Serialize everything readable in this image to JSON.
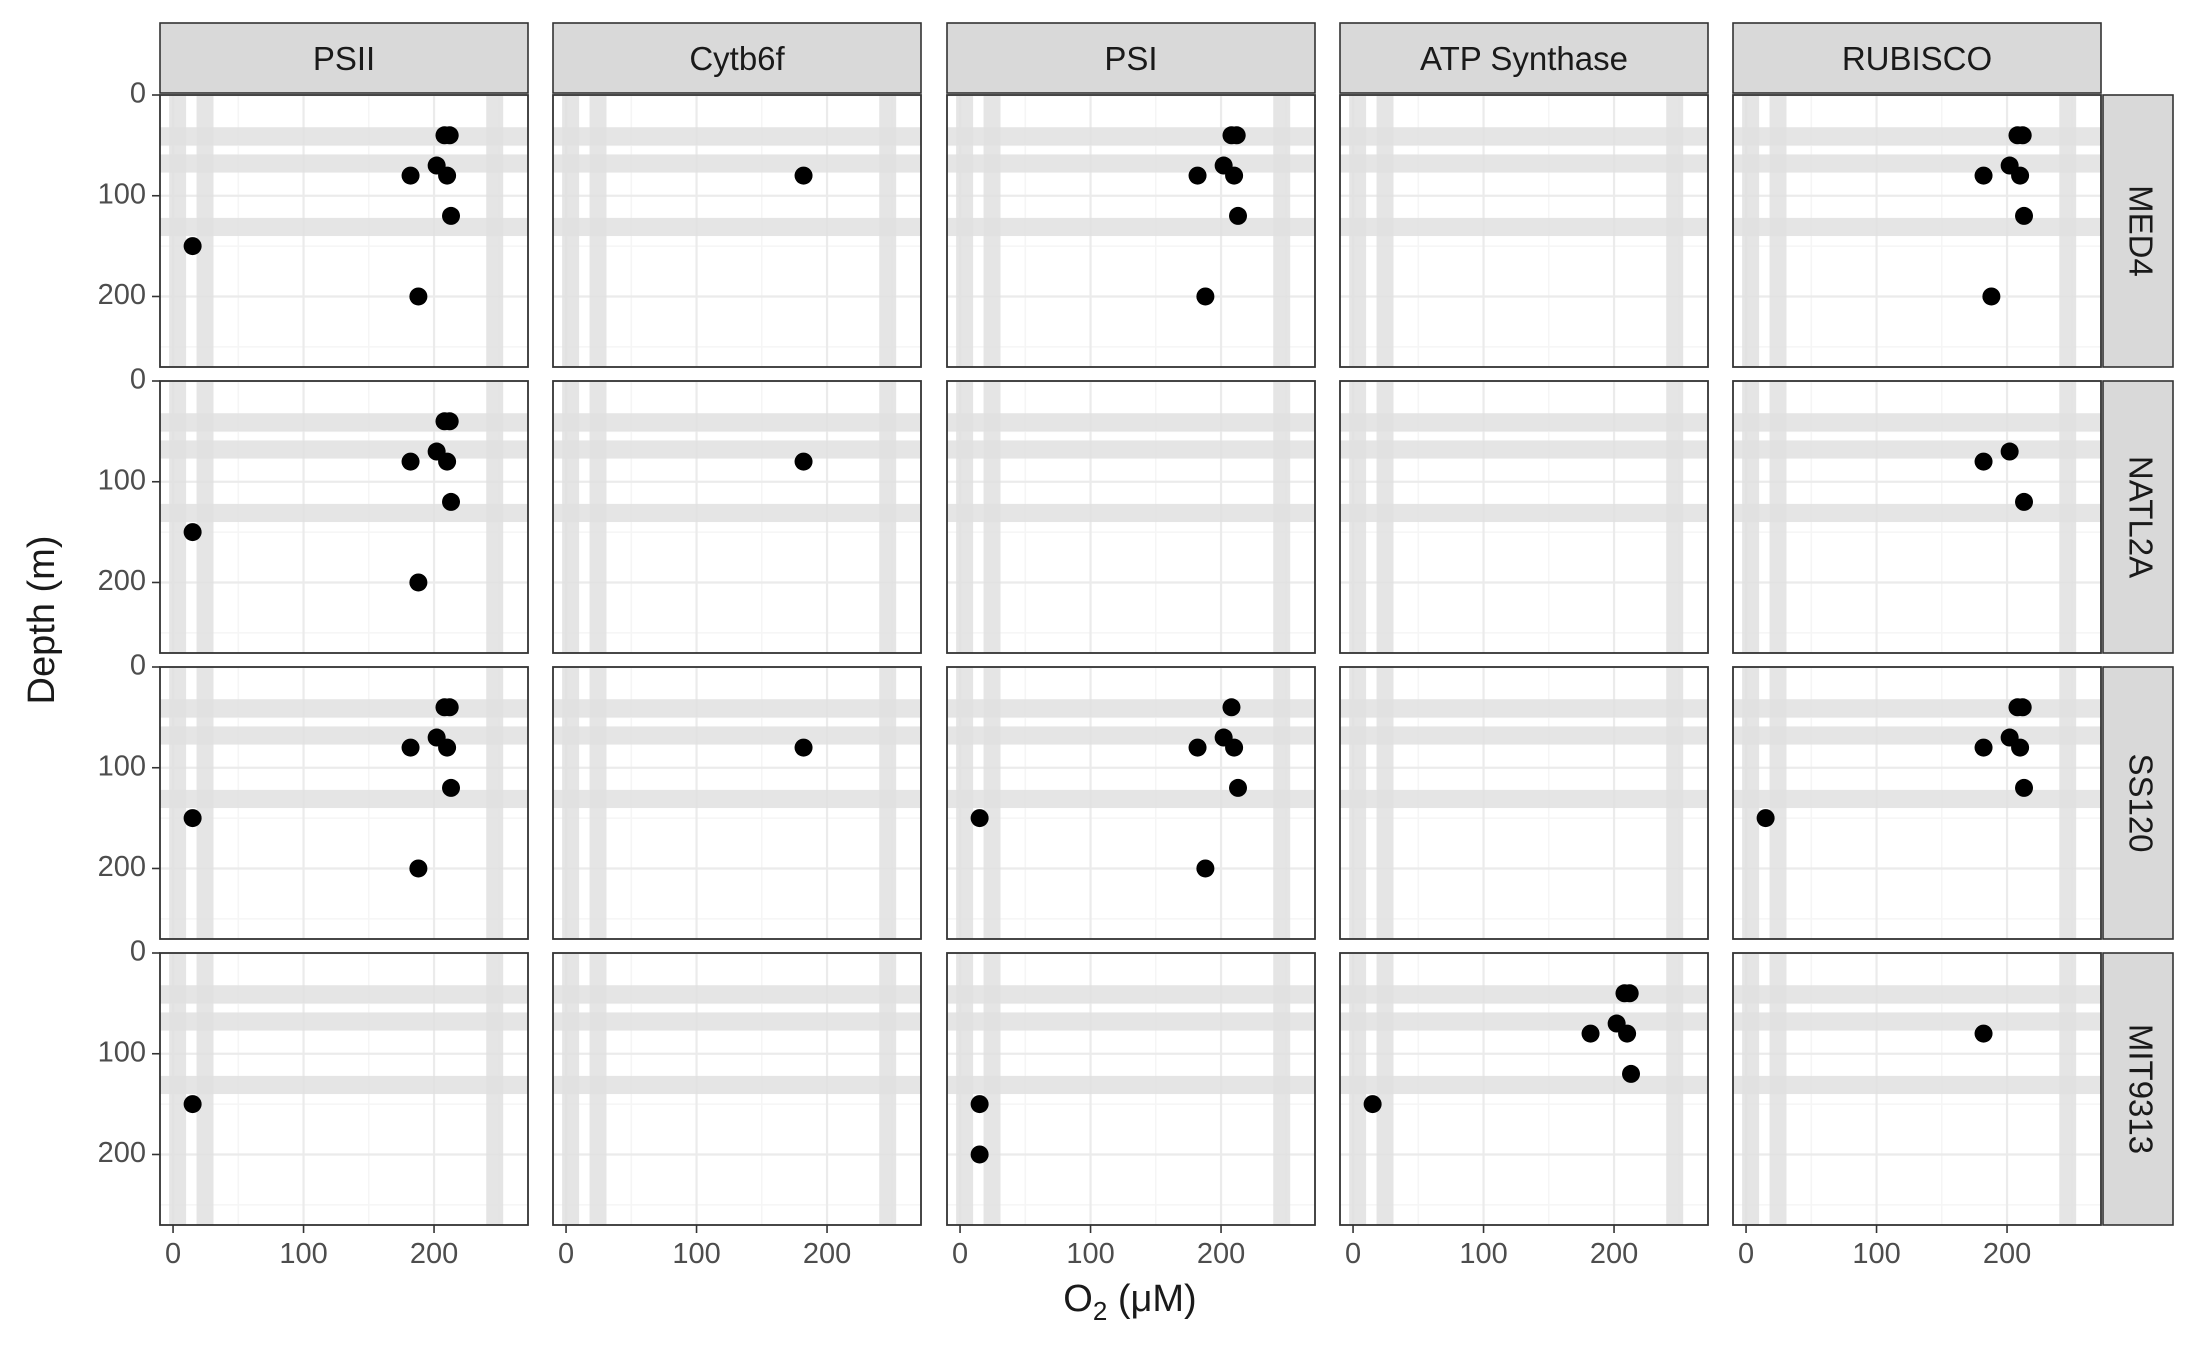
{
  "chart_data": {
    "type": "scatter",
    "xlabel_main": "O",
    "xlabel_sub": "2",
    "xlabel_rest": " (μM)",
    "ylabel": "Depth (m)",
    "xlim": [
      -10,
      272
    ],
    "ylim": [
      0,
      270
    ],
    "y_reversed": true,
    "x_ticks": [
      0,
      100,
      200
    ],
    "y_ticks": [
      0,
      100,
      200
    ],
    "columns": [
      "PSII",
      "Cytb6f",
      "PSI",
      "ATP Synthase",
      "RUBISCO"
    ],
    "rows": [
      "MED4",
      "NATL2A",
      "SS120",
      "MIT9313"
    ],
    "shaded_x_bands": [
      [
        -3,
        10
      ],
      [
        18,
        31
      ],
      [
        240,
        253
      ]
    ],
    "shaded_y_bands": [
      [
        32,
        50
      ],
      [
        59,
        77
      ],
      [
        122,
        140
      ]
    ],
    "grid": true,
    "panels": [
      {
        "row": "MED4",
        "column": "PSII",
        "points": [
          [
            15,
            150
          ],
          [
            182,
            80
          ],
          [
            202,
            70
          ],
          [
            208,
            40
          ],
          [
            212,
            40
          ],
          [
            210,
            80
          ],
          [
            213,
            120
          ],
          [
            188,
            200
          ]
        ]
      },
      {
        "row": "MED4",
        "column": "Cytb6f",
        "points": [
          [
            182,
            80
          ]
        ]
      },
      {
        "row": "MED4",
        "column": "PSI",
        "points": [
          [
            182,
            80
          ],
          [
            202,
            70
          ],
          [
            208,
            40
          ],
          [
            212,
            40
          ],
          [
            210,
            80
          ],
          [
            213,
            120
          ],
          [
            188,
            200
          ]
        ]
      },
      {
        "row": "MED4",
        "column": "ATP Synthase",
        "points": []
      },
      {
        "row": "MED4",
        "column": "RUBISCO",
        "points": [
          [
            182,
            80
          ],
          [
            202,
            70
          ],
          [
            208,
            40
          ],
          [
            212,
            40
          ],
          [
            210,
            80
          ],
          [
            213,
            120
          ],
          [
            188,
            200
          ]
        ]
      },
      {
        "row": "NATL2A",
        "column": "PSII",
        "points": [
          [
            15,
            150
          ],
          [
            182,
            80
          ],
          [
            202,
            70
          ],
          [
            208,
            40
          ],
          [
            212,
            40
          ],
          [
            210,
            80
          ],
          [
            213,
            120
          ],
          [
            188,
            200
          ]
        ]
      },
      {
        "row": "NATL2A",
        "column": "Cytb6f",
        "points": [
          [
            182,
            80
          ]
        ]
      },
      {
        "row": "NATL2A",
        "column": "PSI",
        "points": []
      },
      {
        "row": "NATL2A",
        "column": "ATP Synthase",
        "points": []
      },
      {
        "row": "NATL2A",
        "column": "RUBISCO",
        "points": [
          [
            182,
            80
          ],
          [
            202,
            70
          ],
          [
            213,
            120
          ]
        ]
      },
      {
        "row": "SS120",
        "column": "PSII",
        "points": [
          [
            15,
            150
          ],
          [
            182,
            80
          ],
          [
            202,
            70
          ],
          [
            208,
            40
          ],
          [
            212,
            40
          ],
          [
            210,
            80
          ],
          [
            213,
            120
          ],
          [
            188,
            200
          ]
        ]
      },
      {
        "row": "SS120",
        "column": "Cytb6f",
        "points": [
          [
            182,
            80
          ]
        ]
      },
      {
        "row": "SS120",
        "column": "PSI",
        "points": [
          [
            15,
            150
          ],
          [
            182,
            80
          ],
          [
            202,
            70
          ],
          [
            208,
            40
          ],
          [
            210,
            80
          ],
          [
            213,
            120
          ],
          [
            188,
            200
          ]
        ]
      },
      {
        "row": "SS120",
        "column": "ATP Synthase",
        "points": []
      },
      {
        "row": "SS120",
        "column": "RUBISCO",
        "points": [
          [
            15,
            150
          ],
          [
            182,
            80
          ],
          [
            202,
            70
          ],
          [
            208,
            40
          ],
          [
            212,
            40
          ],
          [
            210,
            80
          ],
          [
            213,
            120
          ]
        ]
      },
      {
        "row": "MIT9313",
        "column": "PSII",
        "points": [
          [
            15,
            150
          ]
        ]
      },
      {
        "row": "MIT9313",
        "column": "Cytb6f",
        "points": []
      },
      {
        "row": "MIT9313",
        "column": "PSI",
        "points": [
          [
            15,
            150
          ],
          [
            15,
            200
          ]
        ]
      },
      {
        "row": "MIT9313",
        "column": "ATP Synthase",
        "points": [
          [
            15,
            150
          ],
          [
            182,
            80
          ],
          [
            202,
            70
          ],
          [
            208,
            40
          ],
          [
            212,
            40
          ],
          [
            210,
            80
          ],
          [
            213,
            120
          ]
        ]
      },
      {
        "row": "MIT9313",
        "column": "RUBISCO",
        "points": [
          [
            182,
            80
          ]
        ]
      }
    ]
  },
  "colors": {
    "point": "#000000",
    "strip_fill": "#d9d9d9",
    "panel_border": "#333333",
    "grid_major": "#ebebeb",
    "grid_minor": "#f5f5f5",
    "band": "#e0e0e0"
  }
}
